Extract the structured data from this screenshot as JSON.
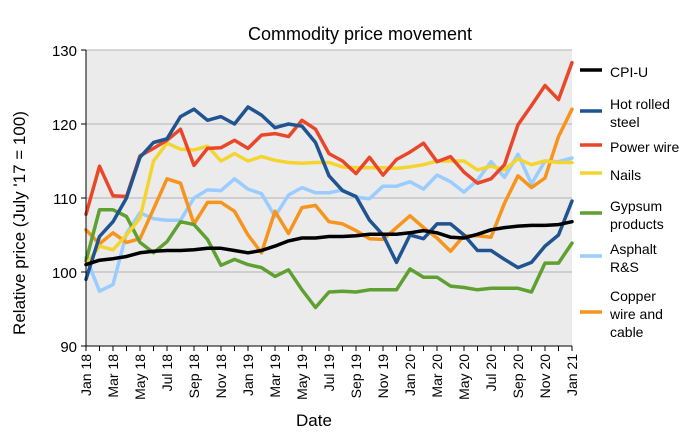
{
  "chart_data": {
    "type": "line",
    "title": "Commodity price movement",
    "xlabel": "Date",
    "ylabel": "Relative price (July '17 = 100)",
    "ylim": [
      90,
      130
    ],
    "yticks": [
      90,
      100,
      110,
      120,
      130
    ],
    "grid": "horizontal",
    "legend_position": "right",
    "x": [
      "Jan 18",
      "Feb 18",
      "Mar 18",
      "Apr 18",
      "May 18",
      "Jun 18",
      "Jul 18",
      "Aug 18",
      "Sep 18",
      "Oct 18",
      "Nov 18",
      "Dec 18",
      "Jan 19",
      "Feb 19",
      "Mar 19",
      "Apr 19",
      "May 19",
      "Jun 19",
      "Jul 19",
      "Aug 19",
      "Sep 19",
      "Oct 19",
      "Nov 19",
      "Dec 19",
      "Jan 20",
      "Feb 20",
      "Mar 20",
      "Apr 20",
      "May 20",
      "Jun 20",
      "Jul 20",
      "Aug 20",
      "Sep 20",
      "Oct 20",
      "Nov 20",
      "Dec 20",
      "Jan 21"
    ],
    "x_tick_labels": [
      "Jan 18",
      "Mar 18",
      "May 18",
      "Jul 18",
      "Sep 18",
      "Nov 18",
      "Jan 19",
      "Mar 19",
      "May 19",
      "Jul 19",
      "Sep 19",
      "Nov 19",
      "Jan 20",
      "Mar 20",
      "May 20",
      "Jul 20",
      "Sep 20",
      "Nov 20",
      "Jan 21"
    ],
    "series": [
      {
        "name": "CPI-U",
        "color": "#000000",
        "values": [
          101.0,
          101.6,
          101.8,
          102.1,
          102.6,
          102.8,
          102.9,
          102.9,
          103.0,
          103.2,
          103.2,
          102.9,
          102.6,
          102.9,
          103.5,
          104.2,
          104.6,
          104.6,
          104.8,
          104.8,
          104.9,
          105.1,
          105.1,
          105.1,
          105.3,
          105.6,
          105.3,
          104.7,
          104.6,
          105.1,
          105.7,
          106.0,
          106.2,
          106.3,
          106.3,
          106.4,
          106.8
        ]
      },
      {
        "name": "Hot rolled steel",
        "color": "#1f5491",
        "values": [
          99.0,
          104.8,
          106.8,
          110.0,
          115.5,
          117.5,
          118.0,
          121.0,
          122.0,
          120.5,
          121.0,
          120.0,
          122.3,
          121.2,
          119.5,
          120.0,
          119.7,
          117.5,
          113.0,
          111.0,
          110.2,
          107.0,
          105.0,
          101.3,
          105.0,
          104.5,
          106.5,
          106.5,
          105.0,
          102.9,
          102.9,
          101.7,
          100.6,
          101.3,
          103.5,
          105.0,
          109.6
        ]
      },
      {
        "name": "Power wire",
        "color": "#e9472a",
        "values": [
          107.8,
          114.3,
          110.3,
          110.2,
          115.7,
          116.7,
          117.8,
          119.3,
          114.4,
          116.7,
          116.8,
          117.8,
          116.7,
          118.5,
          118.7,
          118.3,
          120.5,
          119.3,
          116.0,
          115.0,
          113.3,
          115.5,
          113.1,
          115.2,
          116.2,
          117.4,
          114.9,
          115.6,
          113.5,
          112.0,
          112.6,
          114.5,
          119.9,
          122.5,
          125.2,
          123.3,
          128.3
        ]
      },
      {
        "name": "Nails",
        "color": "#f4d530",
        "values": [
          101.0,
          103.5,
          103.0,
          105.0,
          107.3,
          115.0,
          117.4,
          116.6,
          116.5,
          117.0,
          115.0,
          116.0,
          115.0,
          115.6,
          115.1,
          114.8,
          114.7,
          114.8,
          114.8,
          114.2,
          114.1,
          114.1,
          114.1,
          114.0,
          114.2,
          114.5,
          115.0,
          115.0,
          115.0,
          113.8,
          114.3,
          113.8,
          115.3,
          114.5,
          115.0,
          114.8,
          114.8
        ]
      },
      {
        "name": "Gypsum products",
        "color": "#5ea130",
        "values": [
          101.5,
          108.4,
          108.4,
          107.5,
          104.0,
          102.6,
          104.1,
          106.8,
          106.4,
          104.4,
          100.9,
          101.7,
          101.0,
          100.6,
          99.4,
          100.3,
          97.6,
          95.2,
          97.3,
          97.4,
          97.3,
          97.6,
          97.6,
          97.6,
          100.4,
          99.3,
          99.3,
          98.1,
          97.9,
          97.6,
          97.8,
          97.8,
          97.8,
          97.3,
          101.2,
          101.2,
          103.9
        ]
      },
      {
        "name": "Asphalt R&S",
        "color": "#99ccff",
        "values": [
          102.0,
          97.4,
          98.3,
          105.2,
          108.0,
          107.2,
          107.0,
          107.0,
          110.0,
          111.1,
          111.0,
          112.6,
          111.2,
          110.6,
          107.5,
          110.4,
          111.4,
          110.7,
          110.7,
          111.1,
          110.1,
          109.9,
          111.6,
          111.6,
          112.2,
          111.2,
          113.1,
          112.2,
          110.8,
          112.4,
          114.9,
          112.8,
          115.9,
          111.9,
          115.0,
          114.9,
          115.4
        ]
      },
      {
        "name": "Copper wire and cable",
        "color": "#f7941d",
        "values": [
          105.7,
          103.8,
          105.3,
          104.0,
          104.5,
          108.5,
          112.6,
          112.0,
          106.5,
          109.4,
          109.4,
          108.2,
          105.0,
          102.6,
          108.2,
          105.2,
          108.7,
          109.0,
          106.8,
          106.5,
          105.6,
          104.5,
          104.4,
          106.0,
          107.6,
          106.0,
          104.6,
          102.8,
          104.9,
          104.9,
          104.7,
          109.3,
          113.0,
          111.4,
          112.7,
          118.3,
          122.0
        ]
      }
    ],
    "legend_labels": [
      {
        "name": "CPI-U",
        "lines": [
          "CPI-U"
        ]
      },
      {
        "name": "Hot rolled steel",
        "lines": [
          "Hot rolled",
          "steel"
        ]
      },
      {
        "name": "Power wire",
        "lines": [
          "Power wire"
        ]
      },
      {
        "name": "Nails",
        "lines": [
          "Nails"
        ]
      },
      {
        "name": "Gypsum products",
        "lines": [
          "Gypsum",
          "products"
        ]
      },
      {
        "name": "Asphalt R&S",
        "lines": [
          "Asphalt",
          "R&S"
        ]
      },
      {
        "name": "Copper wire and cable",
        "lines": [
          "Copper",
          "wire and",
          "cable"
        ]
      }
    ],
    "colors": {
      "plot_background": "#ebebeb",
      "gridline": "#b3b3b3",
      "axis": "#000000"
    }
  }
}
